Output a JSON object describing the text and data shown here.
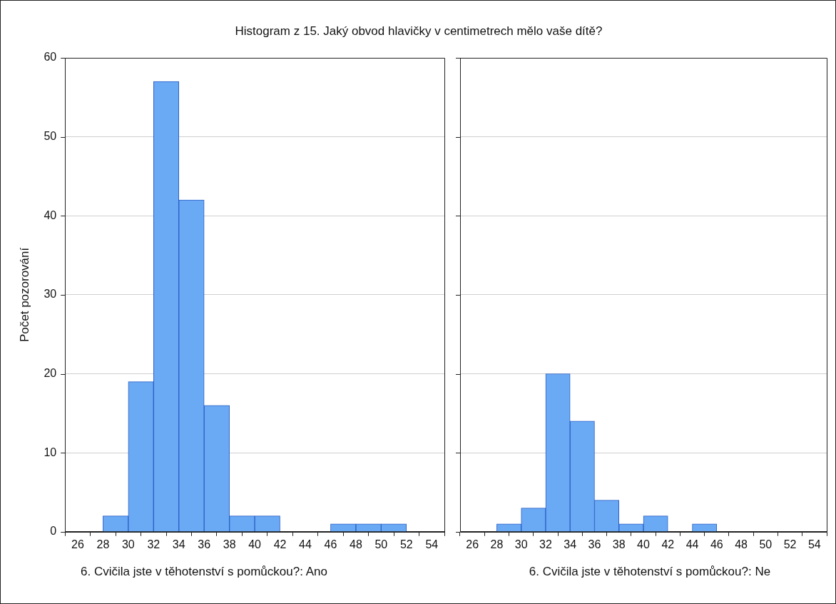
{
  "chart_data": [
    {
      "type": "histogram",
      "title": "Histogram z 15. Jaký obvod hlavičky v centimetrech mělo vaše dítě?",
      "xlabel": "6. Cvičila jste v těhotenství s pomůckou?: Ano",
      "ylabel": "Počet pozorování",
      "bins": [
        26,
        28,
        30,
        32,
        34,
        36,
        38,
        40,
        42,
        44,
        46,
        48,
        50,
        52,
        54
      ],
      "values": [
        0,
        2,
        19,
        57,
        42,
        16,
        2,
        2,
        0,
        0,
        1,
        1,
        1,
        0
      ],
      "color": "#6aa9f4",
      "xlim": [
        25,
        55
      ],
      "xticks": [
        26,
        28,
        30,
        32,
        34,
        36,
        38,
        40,
        42,
        44,
        46,
        48,
        50,
        52,
        54
      ],
      "ylim": [
        0,
        60
      ],
      "yticks": [
        0,
        10,
        20,
        30,
        40,
        50,
        60
      ],
      "grid": "y",
      "legend": false
    },
    {
      "type": "histogram",
      "xlabel": "6. Cvičila jste v těhotenství s pomůckou?: Ne",
      "bins": [
        26,
        28,
        30,
        32,
        34,
        36,
        38,
        40,
        42,
        44,
        46,
        48,
        50,
        52,
        54
      ],
      "values": [
        0,
        1,
        3,
        20,
        14,
        4,
        1,
        2,
        0,
        1,
        0,
        0,
        0,
        0
      ],
      "color": "#6aa9f4",
      "xlim": [
        25,
        55
      ],
      "xticks": [
        26,
        28,
        30,
        32,
        34,
        36,
        38,
        40,
        42,
        44,
        46,
        48,
        50,
        52,
        54
      ],
      "ylim": [
        0,
        60
      ],
      "yticks": [
        0,
        10,
        20,
        30,
        40,
        50,
        60
      ],
      "grid": "y",
      "legend": false,
      "tick_labels": "x"
    }
  ]
}
